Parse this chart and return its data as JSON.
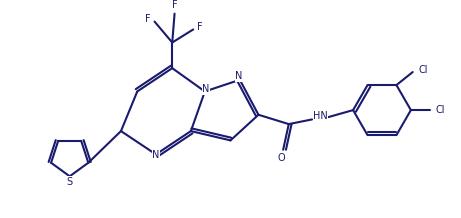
{
  "bg_color": "#ffffff",
  "line_color": "#1a1a6e",
  "line_width": 1.5,
  "figsize": [
    4.61,
    2.18
  ],
  "dpi": 100,
  "xlim": [
    0,
    9.5
  ],
  "ylim": [
    0,
    4.5
  ]
}
